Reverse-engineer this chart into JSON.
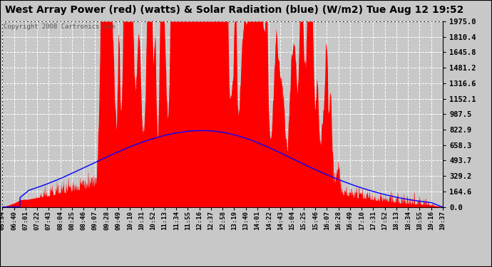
{
  "title": "West Array Power (red) (watts) & Solar Radiation (blue) (W/m2) Tue Aug 12 19:52",
  "copyright": "Copyright 2008 Cartronics.com",
  "yticks": [
    0.0,
    164.6,
    329.2,
    493.7,
    658.3,
    822.9,
    987.5,
    1152.1,
    1316.6,
    1481.2,
    1645.8,
    1810.4,
    1975.0
  ],
  "ylim_max": 1975.0,
  "xtick_labels": [
    "05:54",
    "06:40",
    "07:01",
    "07:22",
    "07:43",
    "08:04",
    "08:25",
    "08:46",
    "09:07",
    "09:28",
    "09:49",
    "10:10",
    "10:31",
    "10:52",
    "11:13",
    "11:34",
    "11:55",
    "12:16",
    "12:37",
    "12:58",
    "13:19",
    "13:40",
    "14:01",
    "14:22",
    "14:43",
    "15:04",
    "15:25",
    "15:46",
    "16:07",
    "16:28",
    "16:49",
    "17:10",
    "17:31",
    "17:52",
    "18:13",
    "18:34",
    "18:55",
    "19:16",
    "19:37"
  ],
  "bg_color": "#c8c8c8",
  "red_color": "#ff0000",
  "blue_color": "#0000ff",
  "title_fontsize": 10,
  "copyright_fontsize": 6.5,
  "grid_color": "#ffffff",
  "tick_fontsize": 6.5,
  "ytick_fontsize": 7.5
}
